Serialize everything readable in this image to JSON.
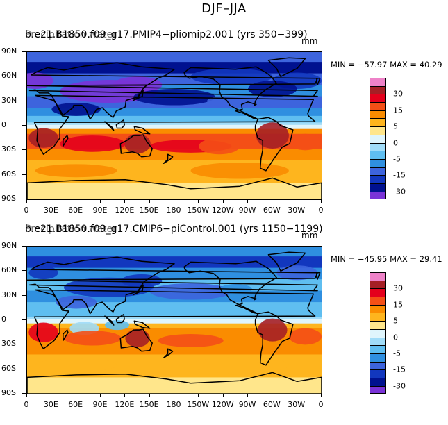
{
  "title": "DJF–JJA",
  "units": "mm",
  "lat_labels": [
    "90N",
    "60N",
    "30N",
    "0",
    "30S",
    "60S",
    "90S"
  ],
  "lon_labels": [
    "0",
    "30E",
    "60E",
    "90E",
    "120E",
    "150E",
    "180",
    "150W",
    "120W",
    "90W",
    "60W",
    "30W",
    "0"
  ],
  "colorbar": {
    "colors": [
      "#ee82c8",
      "#a51f25",
      "#e4001c",
      "#f44f16",
      "#fa8c00",
      "#feb51e",
      "#ffe68b",
      "#dff5fc",
      "#a0dcf8",
      "#5fbef0",
      "#2f8fe0",
      "#3d64dd",
      "#1237be",
      "#00118f",
      "#7a33d7"
    ],
    "tick_labels": [
      "30",
      "15",
      "5",
      "0",
      "-5",
      "-15",
      "-30"
    ]
  },
  "panels": [
    {
      "title": "b.e21.B1850.f09_g17.PMIP4−pliomip2.001 (yrs 350−399)",
      "overprint": "Precipitation water",
      "stats": "MIN = −57.97 MAX =  40.29"
    },
    {
      "title": "b.e21.B1850.f09_g17.CMIP6−piControl.001 (yrs 1150−1199)",
      "overprint": "Precipitation water",
      "stats": "MIN = −45.95 MAX =  29.41"
    }
  ]
}
